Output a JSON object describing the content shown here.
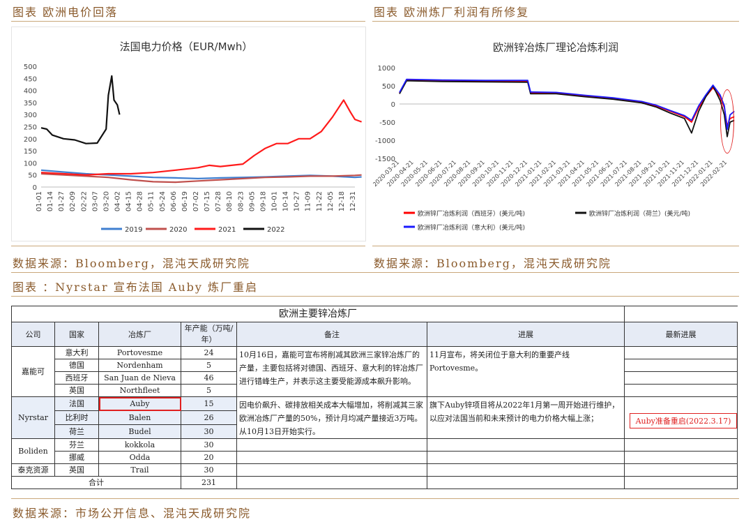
{
  "captions": {
    "top_left": "图表 欧洲电价回落",
    "top_right": "图表 欧洲炼厂利润有所修复",
    "source_left": "数据来源：Bloomberg，混沌天成研究院",
    "source_right": "数据来源：Bloomberg，混沌天成研究院",
    "mid": "图表 ：Nyrstar 宣布法国 Auby 炼厂重启",
    "source_bottom": "数据来源：市场公开信息、混沌天成研究院"
  },
  "chart_data": [
    {
      "type": "line",
      "title": "法国电力价格（EUR/Mwh）",
      "x_ticks": [
        "01-01",
        "01-14",
        "01-27",
        "02-09",
        "02-22",
        "03-07",
        "03-20",
        "04-02",
        "04-15",
        "04-28",
        "05-11",
        "05-24",
        "06-06",
        "06-19",
        "07-02",
        "07-15",
        "07-28",
        "08-10",
        "08-23",
        "09-05",
        "09-18",
        "10-01",
        "10-14",
        "10-27",
        "11-09",
        "11-22",
        "12-05",
        "12-18",
        "12-31"
      ],
      "y_ticks": [
        0,
        50,
        100,
        150,
        200,
        250,
        300,
        350,
        400,
        450,
        500
      ],
      "ylim": [
        0,
        500
      ],
      "legend_position": "bottom",
      "series": [
        {
          "name": "2019",
          "color": "#3f7fd0",
          "points": [
            [
              0,
              70
            ],
            [
              2,
              62
            ],
            [
              4,
              55
            ],
            [
              6,
              50
            ],
            [
              8,
              45
            ],
            [
              10,
              40
            ],
            [
              12,
              38
            ],
            [
              14,
              35
            ],
            [
              16,
              38
            ],
            [
              18,
              40
            ],
            [
              20,
              42
            ],
            [
              22,
              45
            ],
            [
              24,
              48
            ],
            [
              26,
              45
            ],
            [
              28,
              40
            ],
            [
              28.6,
              42
            ]
          ]
        },
        {
          "name": "2020",
          "color": "#c0504d",
          "points": [
            [
              0,
              55
            ],
            [
              2,
              50
            ],
            [
              4,
              45
            ],
            [
              6,
              40
            ],
            [
              8,
              30
            ],
            [
              10,
              22
            ],
            [
              12,
              20
            ],
            [
              14,
              25
            ],
            [
              16,
              30
            ],
            [
              18,
              35
            ],
            [
              20,
              40
            ],
            [
              22,
              42
            ],
            [
              24,
              45
            ],
            [
              26,
              45
            ],
            [
              28,
              48
            ],
            [
              28.6,
              50
            ]
          ]
        },
        {
          "name": "2021",
          "color": "#ff1a1a",
          "points": [
            [
              0,
              60
            ],
            [
              2,
              55
            ],
            [
              4,
              50
            ],
            [
              6,
              55
            ],
            [
              8,
              55
            ],
            [
              10,
              60
            ],
            [
              12,
              70
            ],
            [
              14,
              80
            ],
            [
              15,
              90
            ],
            [
              16,
              85
            ],
            [
              18,
              95
            ],
            [
              19,
              130
            ],
            [
              20,
              160
            ],
            [
              21,
              180
            ],
            [
              22,
              180
            ],
            [
              23,
              200
            ],
            [
              24,
              200
            ],
            [
              25,
              230
            ],
            [
              26,
              290
            ],
            [
              27,
              360
            ],
            [
              27.6,
              310
            ],
            [
              28,
              280
            ],
            [
              28.6,
              270
            ]
          ]
        },
        {
          "name": "2022",
          "color": "#111111",
          "points": [
            [
              0,
              245
            ],
            [
              0.5,
              240
            ],
            [
              1,
              215
            ],
            [
              2,
              200
            ],
            [
              3,
              195
            ],
            [
              4,
              180
            ],
            [
              5,
              182
            ],
            [
              5.8,
              240
            ],
            [
              6,
              380
            ],
            [
              6.3,
              460
            ],
            [
              6.5,
              360
            ],
            [
              6.8,
              340
            ],
            [
              7,
              300
            ]
          ]
        }
      ]
    },
    {
      "type": "line",
      "title": "欧洲锌冶炼厂理论冶炼利润",
      "x_ticks": [
        "2020-03-21",
        "2020-04-21",
        "2020-05-21",
        "2020-06-21",
        "2020-07-21",
        "2020-08-21",
        "2020-09-21",
        "2020-10-21",
        "2020-11-21",
        "2020-12-21",
        "2021-01-21",
        "2021-02-21",
        "2021-03-21",
        "2021-04-21",
        "2021-05-21",
        "2021-06-21",
        "2021-07-21",
        "2021-08-21",
        "2021-09-21",
        "2021-10-21",
        "2021-11-21",
        "2021-12-21",
        "2022-01-21",
        "2022-02-21"
      ],
      "y_ticks": [
        1000,
        500,
        0,
        -500,
        -1000,
        -1500
      ],
      "ylim": [
        -1500,
        1000
      ],
      "legend_position": "bottom",
      "series": [
        {
          "name": "欧洲锌厂冶炼利润（西班牙）(美元/吨)",
          "color": "#ff0000",
          "points": [
            [
              0,
              300
            ],
            [
              0.5,
              650
            ],
            [
              3,
              640
            ],
            [
              6,
              630
            ],
            [
              9,
              620
            ],
            [
              9.2,
              300
            ],
            [
              11,
              300
            ],
            [
              13,
              220
            ],
            [
              15,
              150
            ],
            [
              17,
              50
            ],
            [
              18,
              -50
            ],
            [
              19,
              -200
            ],
            [
              20,
              -350
            ],
            [
              20.5,
              -500
            ],
            [
              21,
              -100
            ],
            [
              21.5,
              200
            ],
            [
              22,
              450
            ],
            [
              22.5,
              200
            ],
            [
              22.8,
              -100
            ],
            [
              23,
              -600
            ],
            [
              23.2,
              -400
            ],
            [
              23.5,
              -350
            ]
          ]
        },
        {
          "name": "欧洲锌厂冶炼利润（荷兰）(美元/吨)",
          "color": "#111111",
          "points": [
            [
              0,
              280
            ],
            [
              0.5,
              640
            ],
            [
              3,
              620
            ],
            [
              6,
              610
            ],
            [
              9,
              600
            ],
            [
              9.2,
              280
            ],
            [
              11,
              280
            ],
            [
              13,
              200
            ],
            [
              15,
              130
            ],
            [
              17,
              30
            ],
            [
              18,
              -80
            ],
            [
              19,
              -250
            ],
            [
              20,
              -400
            ],
            [
              20.5,
              -800
            ],
            [
              21,
              -200
            ],
            [
              21.5,
              200
            ],
            [
              22,
              500
            ],
            [
              22.5,
              100
            ],
            [
              22.8,
              -300
            ],
            [
              23,
              -900
            ],
            [
              23.2,
              -500
            ],
            [
              23.5,
              -450
            ]
          ]
        },
        {
          "name": "欧洲锌厂冶炼利润（意大利）(美元/吨)",
          "color": "#1a1aff",
          "points": [
            [
              0,
              320
            ],
            [
              0.5,
              680
            ],
            [
              3,
              660
            ],
            [
              6,
              650
            ],
            [
              9,
              650
            ],
            [
              9.2,
              330
            ],
            [
              11,
              320
            ],
            [
              13,
              240
            ],
            [
              15,
              170
            ],
            [
              17,
              70
            ],
            [
              18,
              -30
            ],
            [
              19,
              -180
            ],
            [
              20,
              -320
            ],
            [
              20.5,
              -450
            ],
            [
              21,
              -50
            ],
            [
              21.5,
              250
            ],
            [
              22,
              520
            ],
            [
              22.5,
              250
            ],
            [
              22.8,
              -50
            ],
            [
              23,
              -700
            ],
            [
              23.2,
              -300
            ],
            [
              23.5,
              -200
            ]
          ]
        }
      ]
    },
    {
      "type": "table",
      "title": "欧洲主要锌冶炼厂",
      "headers": [
        "公司",
        "国家",
        "冶炼厂",
        "年产能（万吨/年）",
        "备注",
        "进展",
        "最新进展"
      ],
      "rows": [
        [
          "嘉能可",
          "意大利",
          "Portovesme",
          "24"
        ],
        [
          "",
          "德国",
          "Nordenham",
          "5"
        ],
        [
          "",
          "西班牙",
          "San Juan de Nieva",
          "46"
        ],
        [
          "",
          "英国",
          "Northfleet",
          "5"
        ],
        [
          "Nyrstar",
          "法国",
          "Auby",
          "15"
        ],
        [
          "",
          "比利时",
          "Balen",
          "26"
        ],
        [
          "",
          "荷兰",
          "Budel",
          "30"
        ],
        [
          "Boliden",
          "芬兰",
          "kokkola",
          "30"
        ],
        [
          "",
          "挪威",
          "Odda",
          "20"
        ],
        [
          "泰克资源",
          "英国",
          "Trail",
          "30"
        ]
      ],
      "total_label": "合计",
      "total_value": "231",
      "glencore_note": "10月16日，嘉能可宣布将削减其欧洲三家锌冶炼厂的产量，主要包括将对德国、西班牙、意大利的锌冶炼厂进行错峰生产，并表示这主要受能源成本飙升影响。",
      "glencore_progress": "11月宣布，将关闭位于意大利的重要产线Portovesme。",
      "nyrstar_note": "因电价飙升、碳排放相关成本大幅增加，将削减其三家欧洲冶炼厂产量的50%，预计月均减产量接近3万吨。从10月13日开始实行。",
      "nyrstar_progress": "旗下Auby锌项目将从2022年1月第一周开始进行维护，以应对法国当前和未来预计的电力价格大幅上涨；",
      "nyrstar_latest": "Auby准备重启(2022.3.17)"
    }
  ]
}
